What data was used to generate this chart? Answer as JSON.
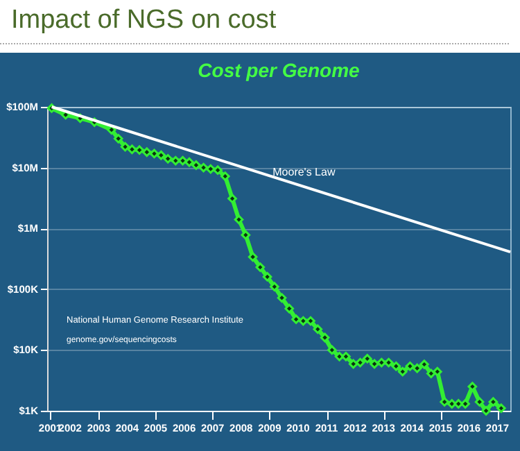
{
  "chart_data": {
    "type": "line",
    "title": "Impact of NGS on cost",
    "subtitle": "Cost per Genome",
    "log": "y",
    "grid": "y",
    "legend": false,
    "marker": "diamond",
    "xlim": [
      2001.19,
      2017.45
    ],
    "xticks": [
      {
        "value": 2001.3,
        "label": "2001"
      },
      2002,
      2003,
      2004,
      2005,
      2006,
      2007,
      2008,
      2009,
      2010,
      2011,
      2012,
      2013,
      2014,
      2015,
      2016,
      2017
    ],
    "ylim": [
      1000,
      100000000
    ],
    "yticks": [
      {
        "value": 1000,
        "label": "$1K"
      },
      {
        "value": 10000,
        "label": "$10K"
      },
      {
        "value": 100000,
        "label": "$100K"
      },
      {
        "value": 1000000,
        "label": "$1M"
      },
      {
        "value": 10000000,
        "label": "$10M"
      },
      {
        "value": 100000000,
        "label": "$100M"
      }
    ],
    "series": [
      {
        "color": "#33ee33",
        "x": [
          2001.35,
          2001.84,
          2002.35,
          2002.85,
          2003.45,
          2003.69,
          2003.93,
          2004.17,
          2004.43,
          2004.69,
          2004.95,
          2005.19,
          2005.43,
          2005.7,
          2005.95,
          2006.18,
          2006.42,
          2006.68,
          2006.93,
          2007.18,
          2007.44,
          2007.69,
          2007.92,
          2008.16,
          2008.41,
          2008.67,
          2008.92,
          2009.17,
          2009.43,
          2009.69,
          2009.93,
          2010.18,
          2010.44,
          2010.69,
          2010.94,
          2011.19,
          2011.45,
          2011.68,
          2011.94,
          2012.18,
          2012.43,
          2012.68,
          2012.93,
          2013.18,
          2013.44,
          2013.67,
          2013.93,
          2014.18,
          2014.43,
          2014.67,
          2014.89,
          2015.14,
          2015.4,
          2015.63,
          2015.87,
          2016.12,
          2016.37,
          2016.6,
          2016.85,
          2017.13
        ],
        "values": [
          95000000,
          74000000,
          65000000,
          56000000,
          42000000,
          30000000,
          22000000,
          20000000,
          19500000,
          18000000,
          17000000,
          16000000,
          14000000,
          13000000,
          13000000,
          12300000,
          11000000,
          10000000,
          9500000,
          9100000,
          7200000,
          3100000,
          1400000,
          780000,
          340000,
          230000,
          160000,
          110000,
          72000,
          48000,
          32000,
          30000,
          30000,
          22000,
          16000,
          10000,
          7800,
          7800,
          5900,
          6200,
          7200,
          5900,
          6200,
          6200,
          5400,
          4400,
          5400,
          5000,
          5800,
          4100,
          4400,
          1400,
          1300,
          1300,
          1300,
          2500,
          1400,
          1000,
          1400,
          1100
        ]
      },
      {
        "name": "Moore's Law",
        "color": "#ffffff",
        "marker": "none",
        "x": [
          2001.35,
          2017.45
        ],
        "values": [
          100000000,
          410000
        ]
      }
    ],
    "annotations": [
      "National Human Genome Research Institute",
      "genome.gov/sequencingcosts"
    ]
  }
}
